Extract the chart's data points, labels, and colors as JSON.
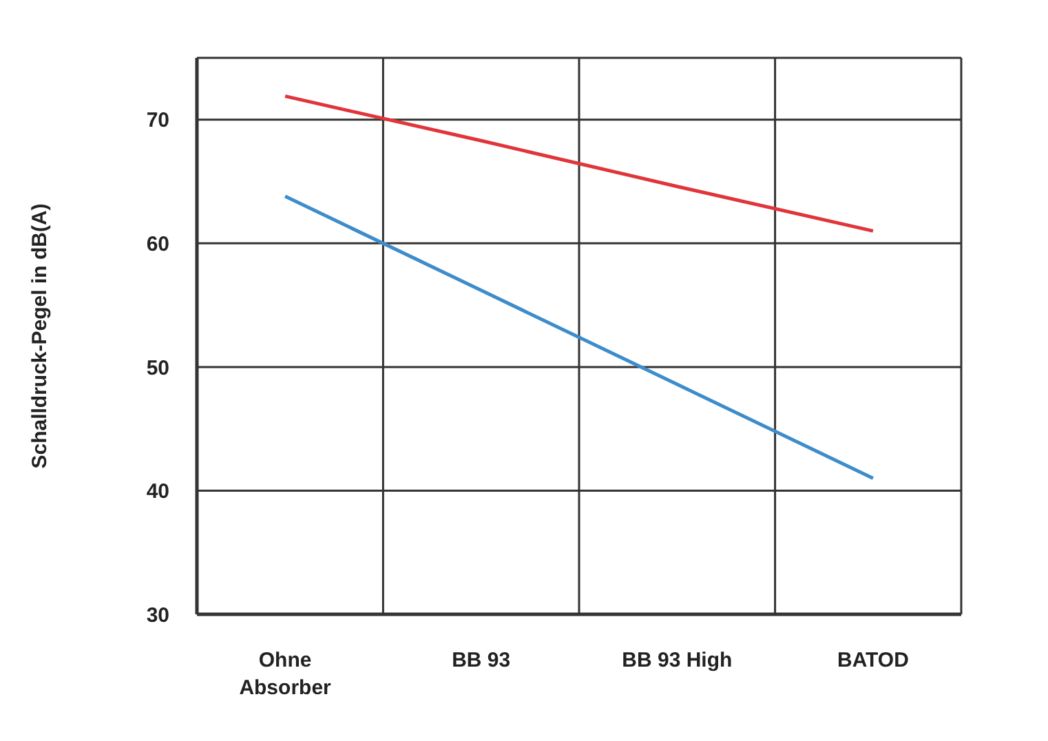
{
  "chart_data": {
    "type": "line",
    "ylabel": "Schalldruck-Pegel in dB(A)",
    "categories": [
      "Ohne Absorber",
      "BB 93",
      "BB 93 High",
      "BATOD"
    ],
    "series": [
      {
        "color": "#e0353a",
        "values": [
          71.9,
          68.3,
          64.6,
          61
        ]
      },
      {
        "color": "#3d8ccb",
        "values": [
          63.8,
          56.2,
          48.6,
          41
        ]
      }
    ],
    "ylim": [
      30,
      75
    ],
    "yticks": [
      30,
      40,
      50,
      60,
      70
    ],
    "grid": true,
    "marker": "none",
    "line_style": "solid"
  }
}
